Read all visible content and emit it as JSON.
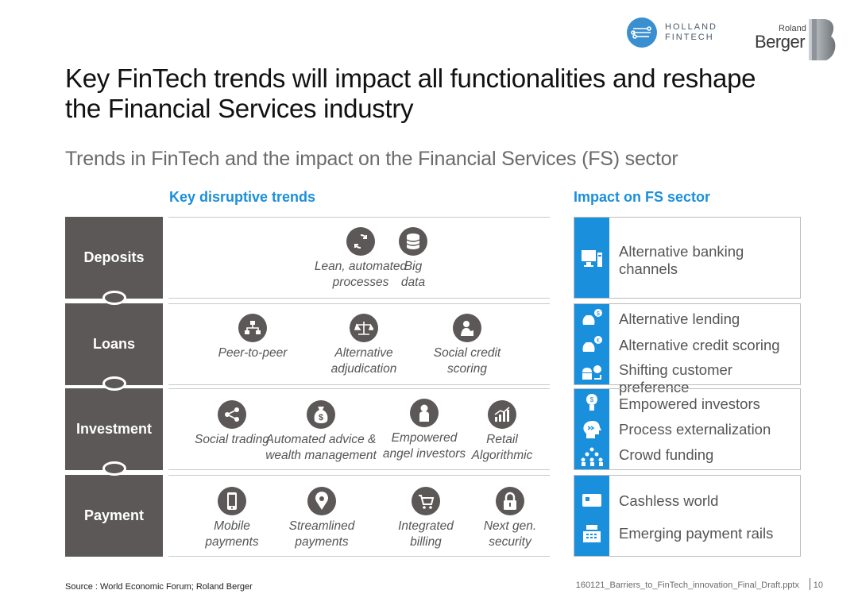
{
  "logos": {
    "holland_fintech": [
      "HOLLAND",
      "FINTECH"
    ],
    "roland_berger_small": "Roland",
    "roland_berger_big": "Berger"
  },
  "title": "Key FinTech trends will impact all functionalities and reshape the Financial Services industry",
  "subtitle": "Trends in FinTech and the impact on the Financial Services (FS) sector",
  "headers": {
    "left": "Key disruptive trends",
    "right": "Impact on FS sector"
  },
  "rows": [
    {
      "label": "Deposits",
      "trends": [
        {
          "icon": "refresh-icon",
          "label": "Lean, automated processes"
        },
        {
          "icon": "database-icon",
          "label": "Big data"
        }
      ],
      "impacts": [
        {
          "icon": "computer-icon",
          "label": "Alternative banking channels"
        }
      ]
    },
    {
      "label": "Loans",
      "trends": [
        {
          "icon": "network-icon",
          "label": "Peer-to-peer"
        },
        {
          "icon": "scales-icon",
          "label": "Alternative adjudication"
        },
        {
          "icon": "person-icon",
          "label": "Social credit scoring"
        }
      ],
      "impacts": [
        {
          "icon": "money-bag-icon",
          "label": "Alternative lending"
        },
        {
          "icon": "money-bag-icon",
          "label": "Alternative credit scoring"
        },
        {
          "icon": "shopping-icon",
          "label": "Shifting customer preference"
        }
      ]
    },
    {
      "label": "Investment",
      "trends": [
        {
          "icon": "share-icon",
          "label": "Social trading"
        },
        {
          "icon": "dollar-bag-icon",
          "label": "Automated advice & wealth management"
        },
        {
          "icon": "investor-icon",
          "label": "Empowered angel investors"
        },
        {
          "icon": "chart-icon",
          "label": "Retail Algorithmic"
        }
      ],
      "impacts": [
        {
          "icon": "lightbulb-icon",
          "label": "Empowered investors"
        },
        {
          "icon": "head-arrow-icon",
          "label": "Process externalization"
        },
        {
          "icon": "crowd-icon",
          "label": "Crowd funding"
        }
      ]
    },
    {
      "label": "Payment",
      "trends": [
        {
          "icon": "mobile-icon",
          "label": "Mobile payments"
        },
        {
          "icon": "location-icon",
          "label": "Streamlined payments"
        },
        {
          "icon": "cart-icon",
          "label": "Integrated billing"
        },
        {
          "icon": "lock-icon",
          "label": "Next gen. security"
        }
      ],
      "impacts": [
        {
          "icon": "card-icon",
          "label": "Cashless world"
        },
        {
          "icon": "register-icon",
          "label": "Emerging payment rails"
        }
      ]
    }
  ],
  "footer": {
    "source": "Source : World Economic Forum; Roland Berger",
    "file": "160121_Barriers_to_FinTech_innovation_Final_Draft.pptx",
    "page": "10"
  }
}
